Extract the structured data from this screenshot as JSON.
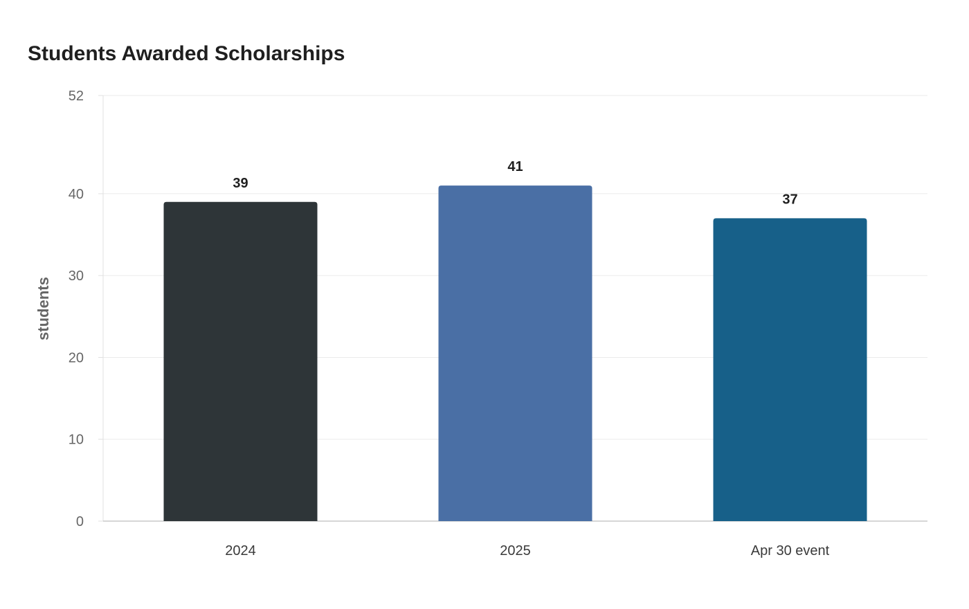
{
  "chart_data": {
    "type": "bar",
    "title": "Students Awarded Scholarships",
    "xlabel": "",
    "ylabel": "students",
    "categories": [
      "2024",
      "2025",
      "Apr 30 event"
    ],
    "values": [
      39,
      41,
      37
    ],
    "colors": [
      "#2e3538",
      "#4a6fa5",
      "#176089"
    ],
    "ylim": [
      0,
      52
    ],
    "yticks": [
      0,
      10,
      20,
      30,
      40,
      52
    ],
    "grid": true,
    "legend": "none"
  }
}
